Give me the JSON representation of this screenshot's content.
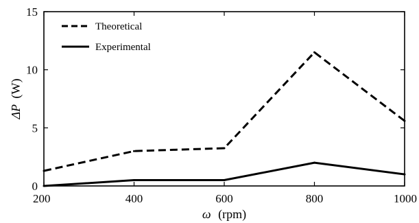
{
  "chart_data": {
    "type": "line",
    "xlabel_symbol": "ω",
    "xlabel_unit": "(rpm)",
    "ylabel_symbol": "ΔP",
    "ylabel_unit": "(W)",
    "xlim": [
      200,
      1000
    ],
    "ylim": [
      0,
      15
    ],
    "x_ticks": [
      200,
      400,
      600,
      800,
      1000
    ],
    "y_ticks": [
      0,
      5,
      10,
      15
    ],
    "grid": false,
    "legend_position": "top-left",
    "x": [
      200,
      400,
      600,
      800,
      1000
    ],
    "series": [
      {
        "name": "Theoretical",
        "style": "dashed",
        "color": "#000000",
        "values": [
          1.3,
          3.0,
          3.25,
          11.5,
          5.6
        ]
      },
      {
        "name": "Experimental",
        "style": "solid",
        "color": "#000000",
        "values": [
          0.0,
          0.5,
          0.5,
          2.0,
          1.0
        ]
      }
    ]
  }
}
